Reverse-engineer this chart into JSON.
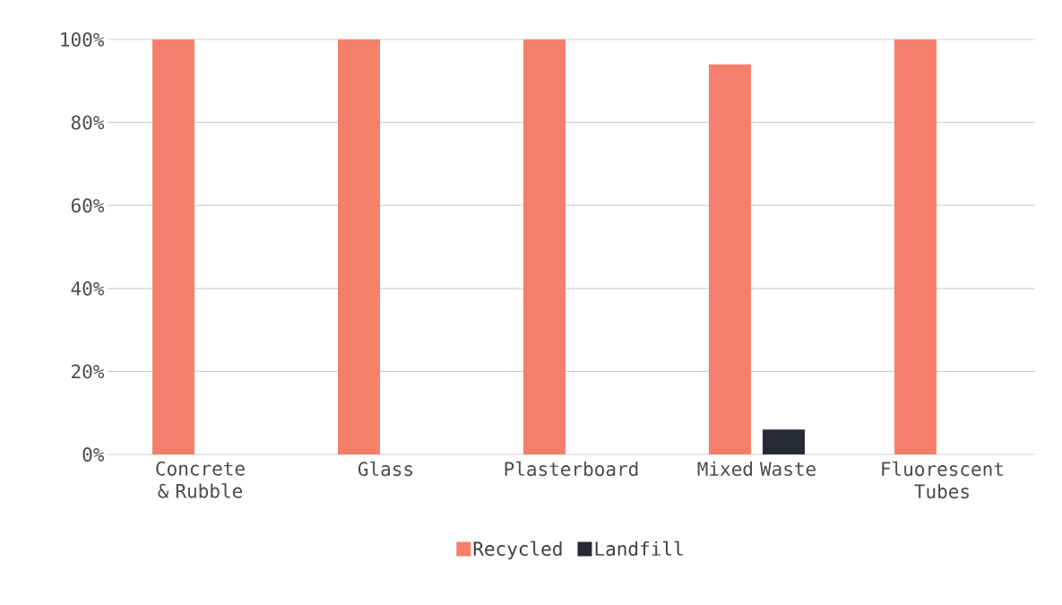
{
  "chart_data": {
    "type": "bar",
    "categories": [
      "Concrete & Rubble",
      "Glass",
      "Plasterboard",
      "Mixed Waste",
      "Fluorescent Tubes"
    ],
    "series": [
      {
        "name": "Recycled",
        "color": "#f4806c",
        "values": [
          100,
          100,
          100,
          94,
          100
        ]
      },
      {
        "name": "Landfill",
        "color": "#262a33",
        "values": [
          0,
          0,
          0,
          6,
          0
        ]
      }
    ],
    "ylim": [
      0,
      100
    ],
    "yticks": [
      {
        "value": 0,
        "label": "0%"
      },
      {
        "value": 20,
        "label": "20%"
      },
      {
        "value": 40,
        "label": "40%"
      },
      {
        "value": 60,
        "label": "60%"
      },
      {
        "value": 80,
        "label": "80%"
      },
      {
        "value": 100,
        "label": "100%"
      }
    ],
    "grid": "y",
    "legend": "bottom"
  }
}
